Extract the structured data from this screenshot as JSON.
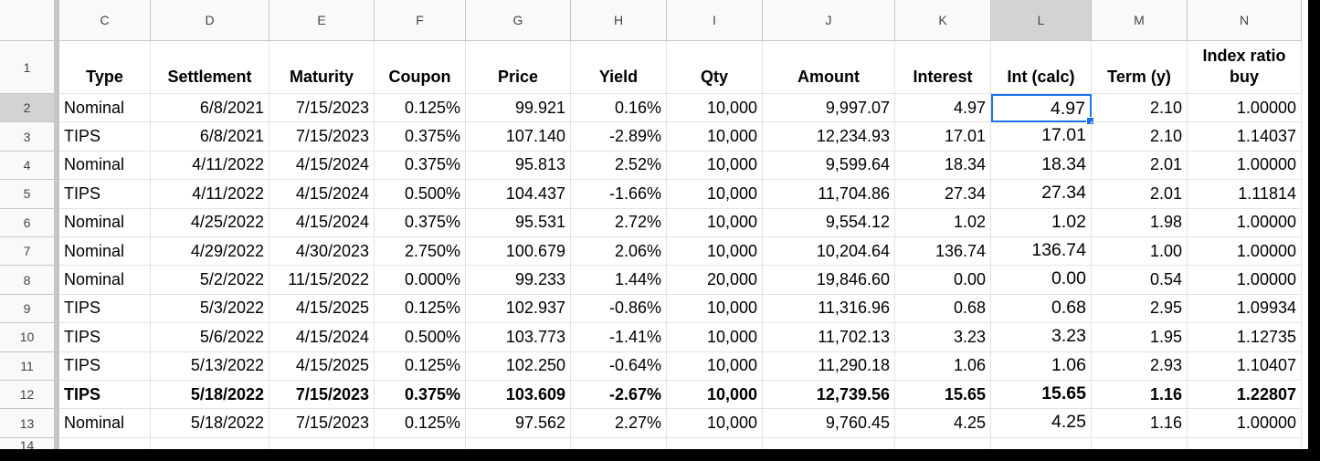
{
  "columns": [
    "C",
    "D",
    "E",
    "F",
    "G",
    "H",
    "I",
    "J",
    "K",
    "L",
    "M",
    "N"
  ],
  "header": {
    "num": "1",
    "cells": [
      "Type",
      "Settlement",
      "Maturity",
      "Coupon",
      "Price",
      "Yield",
      "Qty",
      "Amount",
      "Interest",
      "Int (calc)",
      "Term (y)",
      "Index ratio buy"
    ]
  },
  "rows": [
    {
      "num": "2",
      "cells": [
        "Nominal",
        "6/8/2021",
        "7/15/2023",
        "0.125%",
        "99.921",
        "0.16%",
        "10,000",
        "9,997.07",
        "4.97",
        "4.97",
        "2.10",
        "1.00000"
      ]
    },
    {
      "num": "3",
      "cells": [
        "TIPS",
        "6/8/2021",
        "7/15/2023",
        "0.375%",
        "107.140",
        "-2.89%",
        "10,000",
        "12,234.93",
        "17.01",
        "17.01",
        "2.10",
        "1.14037"
      ]
    },
    {
      "num": "4",
      "cells": [
        "Nominal",
        "4/11/2022",
        "4/15/2024",
        "0.375%",
        "95.813",
        "2.52%",
        "10,000",
        "9,599.64",
        "18.34",
        "18.34",
        "2.01",
        "1.00000"
      ]
    },
    {
      "num": "5",
      "cells": [
        "TIPS",
        "4/11/2022",
        "4/15/2024",
        "0.500%",
        "104.437",
        "-1.66%",
        "10,000",
        "11,704.86",
        "27.34",
        "27.34",
        "2.01",
        "1.11814"
      ]
    },
    {
      "num": "6",
      "cells": [
        "Nominal",
        "4/25/2022",
        "4/15/2024",
        "0.375%",
        "95.531",
        "2.72%",
        "10,000",
        "9,554.12",
        "1.02",
        "1.02",
        "1.98",
        "1.00000"
      ]
    },
    {
      "num": "7",
      "cells": [
        "Nominal",
        "4/29/2022",
        "4/30/2023",
        "2.750%",
        "100.679",
        "2.06%",
        "10,000",
        "10,204.64",
        "136.74",
        "136.74",
        "1.00",
        "1.00000"
      ]
    },
    {
      "num": "8",
      "cells": [
        "Nominal",
        "5/2/2022",
        "11/15/2022",
        "0.000%",
        "99.233",
        "1.44%",
        "20,000",
        "19,846.60",
        "0.00",
        "0.00",
        "0.54",
        "1.00000"
      ]
    },
    {
      "num": "9",
      "cells": [
        "TIPS",
        "5/3/2022",
        "4/15/2025",
        "0.125%",
        "102.937",
        "-0.86%",
        "10,000",
        "11,316.96",
        "0.68",
        "0.68",
        "2.95",
        "1.09934"
      ]
    },
    {
      "num": "10",
      "cells": [
        "TIPS",
        "5/6/2022",
        "4/15/2024",
        "0.500%",
        "103.773",
        "-1.41%",
        "10,000",
        "11,702.13",
        "3.23",
        "3.23",
        "1.95",
        "1.12735"
      ]
    },
    {
      "num": "11",
      "cells": [
        "TIPS",
        "5/13/2022",
        "4/15/2025",
        "0.125%",
        "102.250",
        "-0.64%",
        "10,000",
        "11,290.18",
        "1.06",
        "1.06",
        "2.93",
        "1.10407"
      ]
    },
    {
      "num": "12",
      "bold": true,
      "cells": [
        "TIPS",
        "5/18/2022",
        "7/15/2023",
        "0.375%",
        "103.609",
        "-2.67%",
        "10,000",
        "12,739.56",
        "15.65",
        "15.65",
        "1.16",
        "1.22807"
      ]
    },
    {
      "num": "13",
      "cells": [
        "Nominal",
        "5/18/2022",
        "7/15/2023",
        "0.125%",
        "97.562",
        "2.27%",
        "10,000",
        "9,760.45",
        "4.25",
        "4.25",
        "1.16",
        "1.00000"
      ]
    }
  ],
  "cut_row_num": "14"
}
